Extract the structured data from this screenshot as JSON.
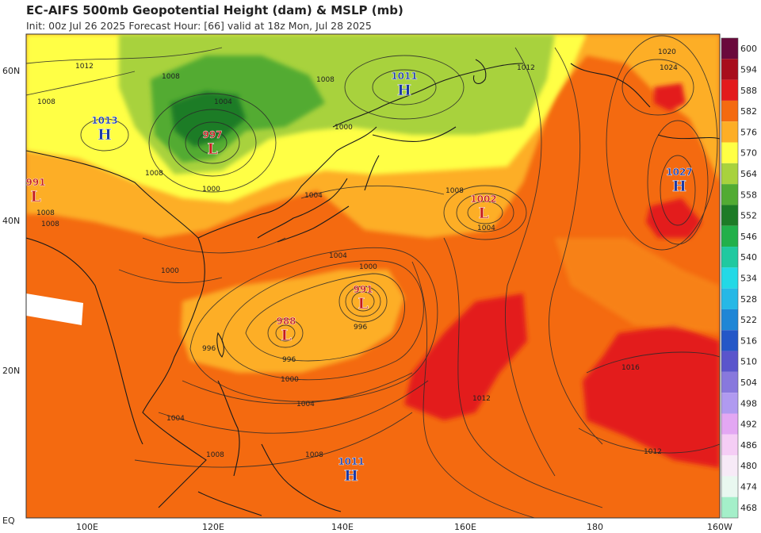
{
  "header": {
    "title": "EC-AIFS 500mb Geopotential Height (dam) & MSLP (mb)",
    "subtitle": "Init: 00z Jul 26 2025   Forecast Hour: [66]   valid at 18z Mon, Jul 28 2025"
  },
  "axes": {
    "lat_labels": [
      "60N",
      "40N",
      "20N",
      "EQ"
    ],
    "lon_labels": [
      "100E",
      "120E",
      "140E",
      "160E",
      "180",
      "160W"
    ]
  },
  "colorbar": {
    "levels": [
      "600",
      "594",
      "588",
      "582",
      "576",
      "570",
      "564",
      "558",
      "552",
      "546",
      "540",
      "534",
      "528",
      "522",
      "516",
      "510",
      "504",
      "498",
      "492",
      "486",
      "480",
      "474",
      "468"
    ],
    "colors": [
      "#6a0a3c",
      "#a80d1c",
      "#e31a1c",
      "#f46a10",
      "#fdae26",
      "#ffff44",
      "#a8d23d",
      "#52ab33",
      "#1d7b26",
      "#22b04a",
      "#20c9a0",
      "#23d9e6",
      "#26b8e6",
      "#1f86d6",
      "#2457c7",
      "#5a55cc",
      "#8878dd",
      "#b09af0",
      "#e3a7f3",
      "#f5cdf5",
      "#f7eaf7",
      "#e9f8f0",
      "#a4efc9"
    ]
  },
  "pressure_centers": [
    {
      "type": "H",
      "value": "1013",
      "color": "#1a3aa8"
    },
    {
      "type": "L",
      "value": "997",
      "color": "#c61a1a"
    },
    {
      "type": "H",
      "value": "1011",
      "color": "#1a3aa8"
    },
    {
      "type": "L",
      "value": "991",
      "color": "#c61a1a"
    },
    {
      "type": "L",
      "value": "1002",
      "color": "#c61a1a"
    },
    {
      "type": "H",
      "value": "1027",
      "color": "#1a3aa8"
    },
    {
      "type": "L",
      "value": "991",
      "color": "#c61a1a"
    },
    {
      "type": "L",
      "value": "988",
      "color": "#c61a1a"
    },
    {
      "type": "H",
      "value": "1011",
      "color": "#1a3aa8"
    }
  ],
  "isobar_labels": [
    "1012",
    "1008",
    "1008",
    "1004",
    "1008",
    "1000",
    "1004",
    "1008",
    "1008",
    "1012",
    "1016",
    "1020",
    "1024",
    "1000",
    "1004",
    "1008",
    "996",
    "996",
    "1000",
    "1004",
    "1008",
    "996",
    "1004",
    "1008",
    "1012",
    "1016",
    "1012",
    "1000",
    "1000",
    "1004",
    "1008"
  ]
}
